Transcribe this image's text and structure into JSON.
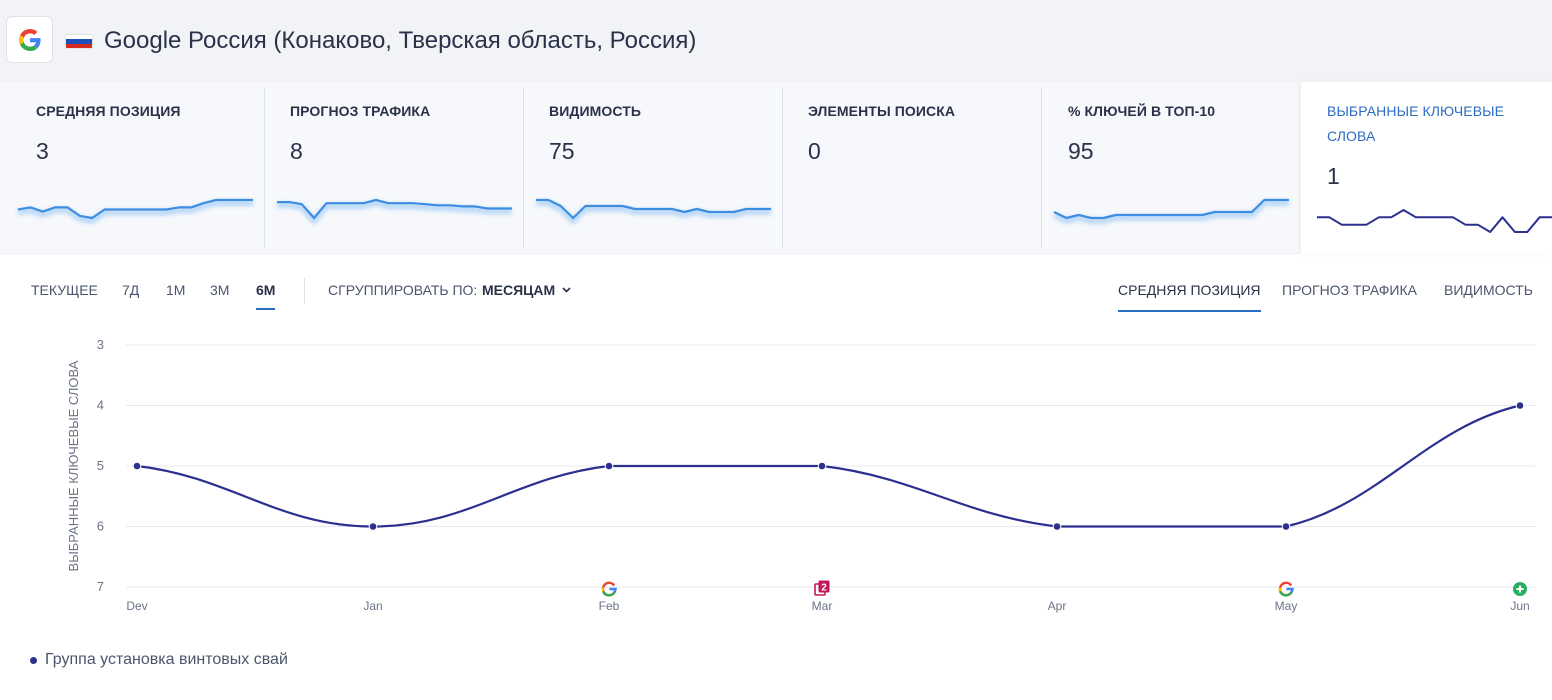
{
  "header": {
    "engine_icon": "google-g-icon",
    "flag_icon": "russia-flag-icon",
    "flag_colors": [
      "#ffffff",
      "#1e4fb8",
      "#d52b1e"
    ],
    "title": "Google Россия (Конаково, Тверская область, Россия)"
  },
  "metric_cards": [
    {
      "label": "СРЕДНЯЯ ПОЗИЦИЯ",
      "value": "3",
      "has_sparkline": true
    },
    {
      "label": "ПРОГНОЗ ТРАФИКА",
      "value": "8",
      "has_sparkline": true
    },
    {
      "label": "ВИДИМОСТЬ",
      "value": "75",
      "has_sparkline": true
    },
    {
      "label": "ЭЛЕМЕНТЫ ПОИСКА",
      "value": "0",
      "has_sparkline": false
    },
    {
      "label": "% КЛЮЧЕЙ В ТОП-10",
      "value": "95",
      "has_sparkline": true
    },
    {
      "label": "ВЫБРАННЫЕ КЛЮЧЕВЫЕ СЛОВА",
      "value": "1",
      "has_sparkline": true,
      "active": true
    }
  ],
  "period_buttons": [
    {
      "label": "ТЕКУЩЕЕ",
      "active": false
    },
    {
      "label": "7Д",
      "active": false
    },
    {
      "label": "1М",
      "active": false
    },
    {
      "label": "3М",
      "active": false
    },
    {
      "label": "6М",
      "active": true
    }
  ],
  "group_by": {
    "label": "СГРУППИРОВАТЬ ПО:",
    "value": "МЕСЯЦАМ",
    "icon": "chevron-down-icon"
  },
  "metric_tabs": [
    {
      "label": "СРЕДНЯЯ ПОЗИЦИЯ",
      "active": true
    },
    {
      "label": "ПРОГНОЗ ТРАФИКА",
      "active": false
    },
    {
      "label": "ВИДИМОСТЬ",
      "active": false
    }
  ],
  "colors": {
    "accent": "#2c6dc4",
    "series": "#2b2f8f",
    "sparkline": "#3d8de0",
    "event_google": "#4285f4",
    "event_serp": "#c2185b",
    "event_added": "#27ae60"
  },
  "chart_data": {
    "type": "line",
    "title": "",
    "xlabel": "",
    "ylabel": "ВЫБРАННЫЕ КЛЮЧЕВЫЕ СЛОВА",
    "categories": [
      "Dev",
      "Jan",
      "Feb",
      "Mar",
      "Apr",
      "May",
      "Jun"
    ],
    "yticks": [
      3,
      4,
      5,
      6,
      7
    ],
    "ylim": [
      3,
      7
    ],
    "y_inverted": true,
    "grid": true,
    "series": [
      {
        "name": "Группа установка винтовых свай",
        "values": [
          5,
          6,
          5,
          5,
          6,
          6,
          4
        ]
      }
    ],
    "events": [
      {
        "category": "Feb",
        "icon": "google-g-icon"
      },
      {
        "category": "Mar",
        "icon": "serp-features-icon",
        "text": "2"
      },
      {
        "category": "May",
        "icon": "google-g-icon"
      },
      {
        "category": "Jun",
        "icon": "plus-circle-icon"
      }
    ],
    "legend": "bottom-left"
  },
  "sparklines": [
    [
      5.2,
      5.0,
      5.4,
      5.0,
      5.0,
      5.8,
      6.0,
      5.2,
      5.2,
      5.2,
      5.2,
      5.2,
      5.2,
      5.0,
      5.0,
      4.6,
      4.3,
      4.3,
      4.3,
      4.3
    ],
    [
      4.0,
      4.0,
      4.2,
      5.5,
      4.1,
      4.1,
      4.1,
      4.1,
      3.8,
      4.1,
      4.1,
      4.1,
      4.2,
      4.3,
      4.3,
      4.4,
      4.4,
      4.6,
      4.6,
      4.6
    ],
    [
      4.3,
      4.3,
      4.5,
      4.9,
      4.5,
      4.5,
      4.5,
      4.5,
      4.6,
      4.6,
      4.6,
      4.6,
      4.7,
      4.6,
      4.7,
      4.7,
      4.7,
      4.6,
      4.6,
      4.6
    ],
    [],
    [
      4.2,
      4.4,
      4.3,
      4.4,
      4.4,
      4.3,
      4.3,
      4.3,
      4.3,
      4.3,
      4.3,
      4.3,
      4.3,
      4.2,
      4.2,
      4.2,
      4.2,
      3.8,
      3.8,
      3.8
    ],
    [
      5,
      5,
      6,
      6,
      6,
      5,
      5,
      4,
      5,
      5,
      5,
      5,
      6,
      6,
      7,
      5,
      7,
      7,
      5,
      5
    ]
  ]
}
